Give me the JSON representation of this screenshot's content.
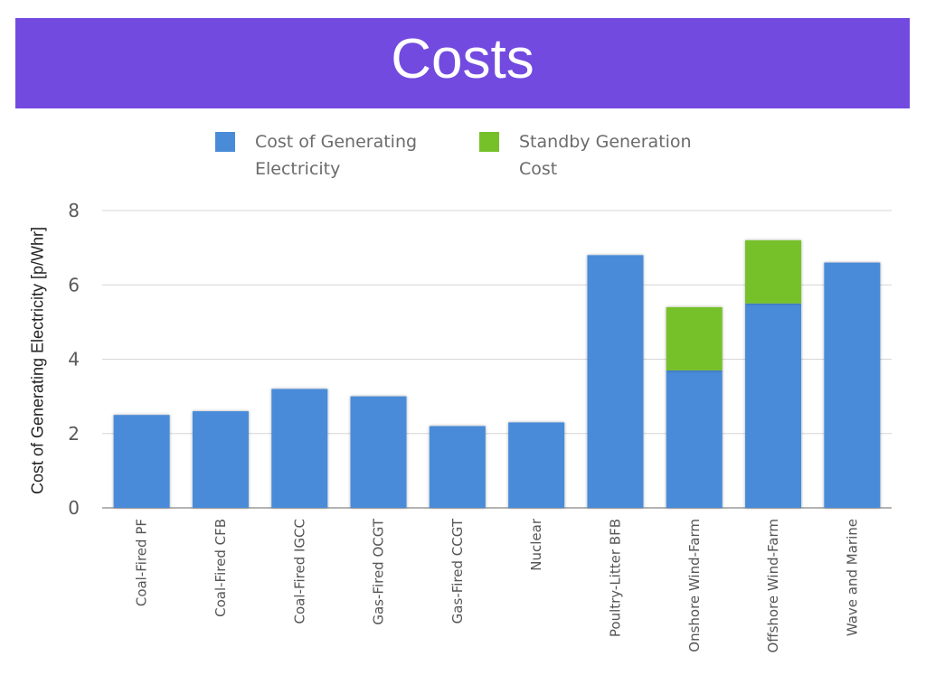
{
  "slide": {
    "title": "Costs"
  },
  "chart_data": {
    "type": "bar",
    "stacked": true,
    "title": "",
    "xlabel": "",
    "ylabel": "Cost of Generating Electricity [p/Whr]",
    "ylim": [
      0,
      8
    ],
    "yticks": [
      0,
      2,
      4,
      6,
      8
    ],
    "grid": true,
    "legend_position": "top",
    "categories": [
      "Coal-Fired PF",
      "Coal-Fired CFB",
      "Coal-Fired IGCC",
      "Gas-Fired OCGT",
      "Gas-Fired CCGT",
      "Nuclear",
      "Poultry-Litter BFB",
      "Onshore Wind-Farm",
      "Offshore Wind-Farm",
      "Wave and Marine"
    ],
    "series": [
      {
        "name": [
          "Cost of Generating",
          "Electricity"
        ],
        "color": "#4a8bd8",
        "values": [
          2.5,
          2.6,
          3.2,
          3.0,
          2.2,
          2.3,
          6.8,
          3.7,
          5.5,
          6.6
        ]
      },
      {
        "name": [
          "Standby Generation",
          "Cost"
        ],
        "color": "#76c12a",
        "values": [
          0,
          0,
          0,
          0,
          0,
          0,
          0,
          1.7,
          1.7,
          0
        ]
      }
    ]
  }
}
